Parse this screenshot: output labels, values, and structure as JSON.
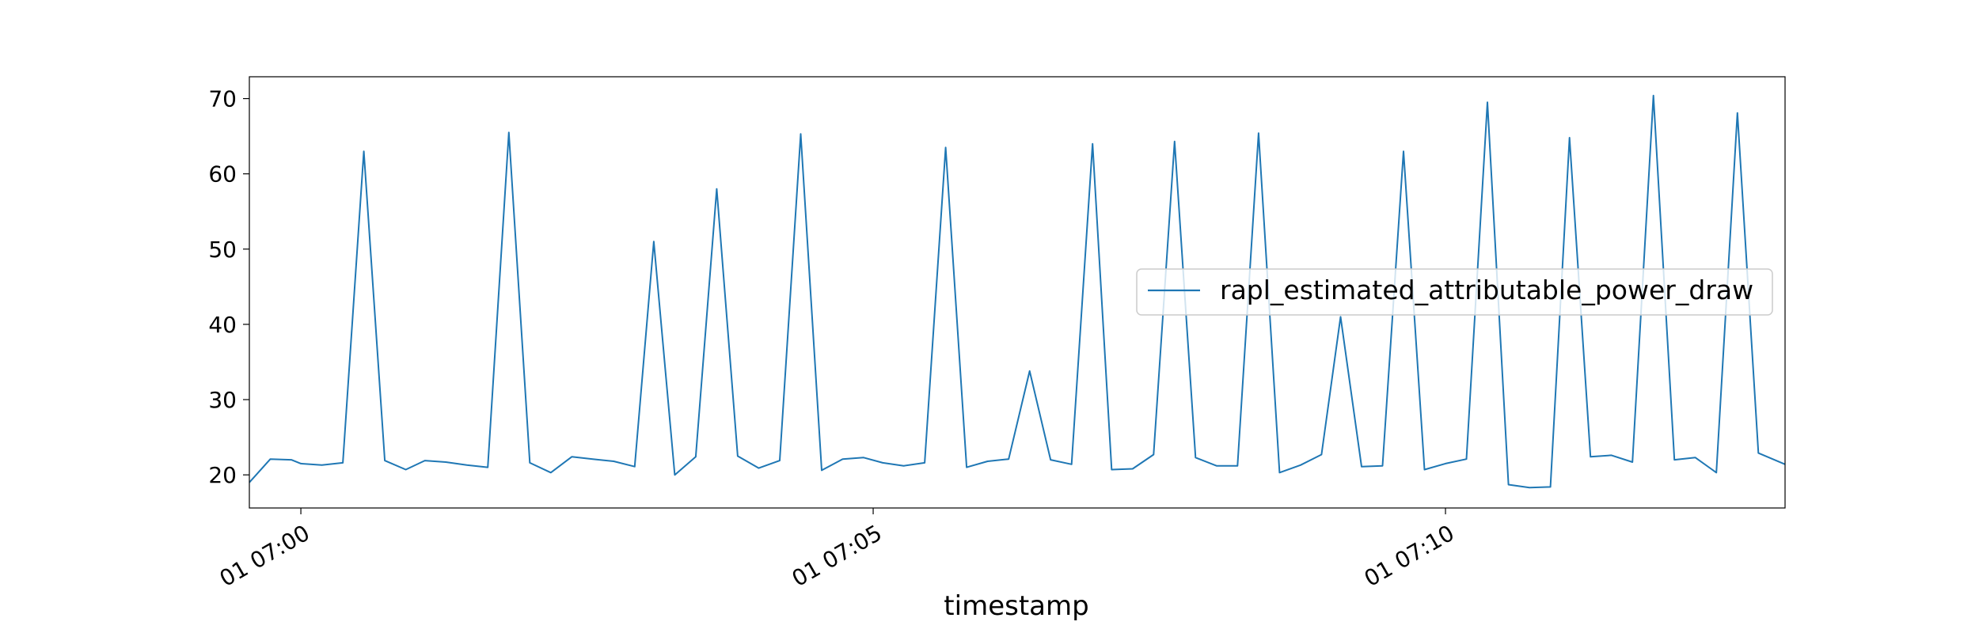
{
  "chart_data": {
    "type": "line",
    "title": "",
    "xlabel": "timestamp",
    "ylabel": "",
    "xlim": [
      "01 06:59:33",
      "01 07:12:58"
    ],
    "ylim": [
      15.6,
      72.9
    ],
    "yticks": [
      20,
      30,
      40,
      50,
      60,
      70
    ],
    "xticks": [
      {
        "t": "01 07:00:00",
        "label": "01 07:00"
      },
      {
        "t": "01 07:05:00",
        "label": "01 07:05"
      },
      {
        "t": "01 07:10:00",
        "label": "01 07:10"
      }
    ],
    "legend": {
      "position": "center-right"
    },
    "grid": false,
    "series": [
      {
        "name": "rapl_estimated_attributable_power_draw",
        "color": "#1f77b4",
        "x": [
          "01 06:59:33",
          "01 06:59:44",
          "01 06:59:55",
          "01 07:00:00",
          "01 07:00:11",
          "01 07:00:22",
          "01 07:00:33",
          "01 07:00:44",
          "01 07:00:55",
          "01 07:01:05",
          "01 07:01:16",
          "01 07:01:27",
          "01 07:01:38",
          "01 07:01:49",
          "01 07:02:00",
          "01 07:02:11",
          "01 07:02:22",
          "01 07:02:33",
          "01 07:02:44",
          "01 07:02:55",
          "01 07:03:05",
          "01 07:03:16",
          "01 07:03:27",
          "01 07:03:38",
          "01 07:03:49",
          "01 07:04:00",
          "01 07:04:11",
          "01 07:04:22",
          "01 07:04:33",
          "01 07:04:44",
          "01 07:04:55",
          "01 07:05:05",
          "01 07:05:16",
          "01 07:05:27",
          "01 07:05:38",
          "01 07:05:49",
          "01 07:06:00",
          "01 07:06:11",
          "01 07:06:22",
          "01 07:06:33",
          "01 07:06:44",
          "01 07:06:55",
          "01 07:07:05",
          "01 07:07:16",
          "01 07:07:27",
          "01 07:07:38",
          "01 07:07:49",
          "01 07:08:00",
          "01 07:08:11",
          "01 07:08:22",
          "01 07:08:33",
          "01 07:08:44",
          "01 07:08:55",
          "01 07:09:05",
          "01 07:09:16",
          "01 07:09:27",
          "01 07:09:38",
          "01 07:09:49",
          "01 07:10:00",
          "01 07:10:11",
          "01 07:10:22",
          "01 07:10:33",
          "01 07:10:44",
          "01 07:10:55",
          "01 07:11:05",
          "01 07:11:16",
          "01 07:11:27",
          "01 07:11:38",
          "01 07:11:49",
          "01 07:12:00",
          "01 07:12:11",
          "01 07:12:22",
          "01 07:12:33",
          "01 07:12:44",
          "01 07:12:58"
        ],
        "y": [
          19.0,
          22.1,
          22.0,
          21.5,
          21.3,
          21.6,
          63.0,
          21.9,
          20.7,
          21.9,
          21.7,
          21.3,
          21.0,
          65.5,
          21.6,
          20.3,
          22.4,
          22.1,
          21.8,
          21.1,
          51.0,
          20.0,
          22.4,
          58.0,
          22.5,
          20.9,
          21.9,
          65.3,
          20.6,
          22.1,
          22.3,
          21.6,
          21.2,
          21.6,
          63.5,
          21.0,
          21.8,
          22.1,
          33.8,
          22.0,
          21.4,
          64.0,
          20.7,
          20.8,
          22.7,
          64.3,
          22.3,
          21.2,
          21.2,
          65.4,
          20.3,
          21.3,
          22.7,
          41.0,
          21.1,
          21.2,
          63.0,
          20.7,
          21.5,
          22.1,
          69.5,
          18.7,
          18.3,
          18.4,
          64.8,
          22.4,
          22.6,
          21.7,
          70.4,
          22.0,
          22.3,
          20.3,
          68.1,
          22.9,
          21.4
        ]
      }
    ]
  }
}
